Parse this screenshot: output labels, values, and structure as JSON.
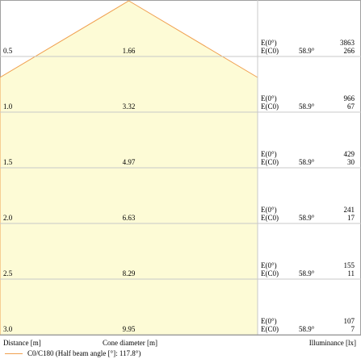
{
  "chart_data": {
    "type": "cone-diagram",
    "colors": {
      "fill": "#fdfbd6",
      "outline": "#f0a050",
      "grid": "#c8c8c8",
      "border": "#a0a0a0"
    },
    "rows": [
      {
        "distance": "0.5",
        "cone_diameter": "1.66",
        "e0_label": "E(0°)",
        "ec0_label": "E(C0)",
        "angle": "58.9°",
        "e0_value": "3863",
        "ec0_value": "266"
      },
      {
        "distance": "1.0",
        "cone_diameter": "3.32",
        "e0_label": "E(0°)",
        "ec0_label": "E(C0)",
        "angle": "58.9°",
        "e0_value": "966",
        "ec0_value": "67"
      },
      {
        "distance": "1.5",
        "cone_diameter": "4.97",
        "e0_label": "E(0°)",
        "ec0_label": "E(C0)",
        "angle": "58.9°",
        "e0_value": "429",
        "ec0_value": "30"
      },
      {
        "distance": "2.0",
        "cone_diameter": "6.63",
        "e0_label": "E(0°)",
        "ec0_label": "E(C0)",
        "angle": "58.9°",
        "e0_value": "241",
        "ec0_value": "17"
      },
      {
        "distance": "2.5",
        "cone_diameter": "8.29",
        "e0_label": "E(0°)",
        "ec0_label": "E(C0)",
        "angle": "58.9°",
        "e0_value": "155",
        "ec0_value": "11"
      },
      {
        "distance": "3.0",
        "cone_diameter": "9.95",
        "e0_label": "E(0°)",
        "ec0_label": "E(C0)",
        "angle": "58.9°",
        "e0_value": "107",
        "ec0_value": "7"
      }
    ],
    "footer": {
      "distance_label": "Distance [m]",
      "cone_label": "Cone diameter [m]",
      "illuminance_label": "Illuminance [lx]"
    },
    "legend": {
      "label": "C0/C180 (Half beam angle [°]: 117.8°)"
    }
  }
}
